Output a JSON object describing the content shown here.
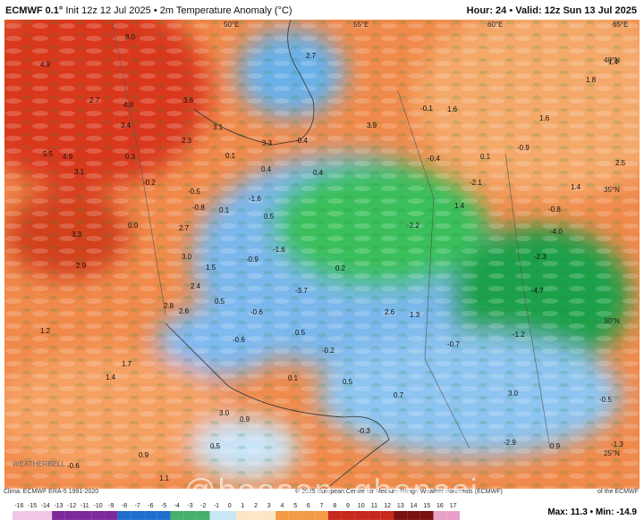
{
  "header": {
    "model": "ECMWF 0.1°",
    "init": "Init 12z 12 Jul 2025",
    "field": "2m Temperature Anomaly (°C)",
    "hour": "Hour: 24",
    "valid": "Valid: 12z Sun 13 Jul 2025"
  },
  "map": {
    "lon_labels": [
      "50°E",
      "55°E",
      "60°E",
      "65°E"
    ],
    "lat_labels": [
      "40°N",
      "35°N",
      "30°N",
      "25°N"
    ],
    "values": [
      "8.0",
      "4.9",
      "2.7",
      "4.0",
      "3.4",
      "3.6",
      "3.1",
      "2.3",
      "3.3",
      "-0.4",
      "3.9",
      "5.5",
      "4.9",
      "3.1",
      "0.3",
      "-0.2",
      "0.1",
      "0.4",
      "0.4",
      "-0.5",
      "-0.8",
      "0.1",
      "-1.6",
      "0.5",
      "3.3",
      "0.0",
      "2.7",
      "2.9",
      "3.0",
      "1.5",
      "-1.6",
      "-0.9",
      "0.2",
      "2.4",
      "2.8",
      "2.6",
      "0.5",
      "-3.7",
      "-0.6",
      "2.6",
      "1.3",
      "1.2",
      "-0.6",
      "0.5",
      "-0.2",
      "-0.7",
      "1.7",
      "1.4",
      "0.1",
      "0.5",
      "0.7",
      "3.0",
      "3.0",
      "0.9",
      "-0.3",
      "0.5",
      "0.9",
      "-0.6",
      "1.1",
      "-0.1",
      "1.6",
      "1.6",
      "0.1",
      "-0.9",
      "-0.4",
      "-2.1",
      "1.4",
      "2.5",
      "1.4",
      "-0.8",
      "-4.0",
      "-2.3",
      "-4.7",
      "-1.2",
      "-2.2",
      "2.7",
      "1.4",
      "1.8",
      "-0.5",
      "-1.3",
      "0.9",
      "-2.9"
    ]
  },
  "footer": {
    "clima": "Clima: ECMWF ERA-5 1991-2020",
    "copyright": "© 2025 European Centre for Medium-Range Weather Forecasts (ECMWF)",
    "credit": "of the ECMWF",
    "max": "Max: 11.3",
    "min": "Min: -14.9",
    "watermark": "@haasan_ghenasi",
    "logo": "WEATHERBELL"
  },
  "colorbar": {
    "ticks": [
      "-16",
      "-15",
      "-14",
      "-13",
      "-12",
      "-11",
      "-10",
      "-9",
      "-8",
      "-7",
      "-6",
      "-5",
      "-4",
      "-3",
      "-2",
      "-1",
      "0",
      "1",
      "2",
      "3",
      "4",
      "5",
      "6",
      "7",
      "8",
      "9",
      "10",
      "11",
      "12",
      "13",
      "14",
      "15",
      "16",
      "17"
    ]
  }
}
